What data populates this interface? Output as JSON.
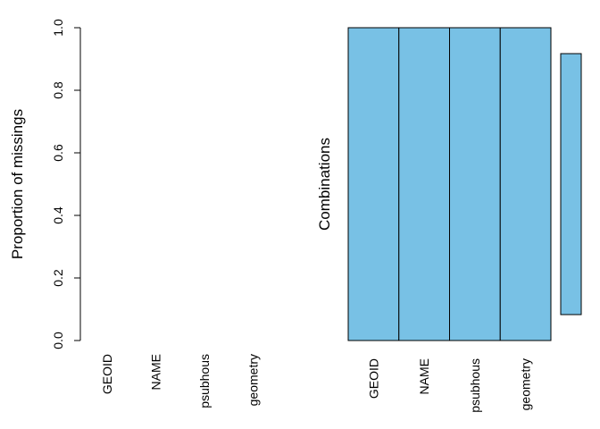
{
  "colors": {
    "fill": "#78C1E5",
    "stroke": "#000000",
    "background": "#ffffff"
  },
  "chart_data": [
    {
      "type": "bar",
      "title": "",
      "xlabel": "",
      "ylabel": "Proportion of missings",
      "categories": [
        "GEOID",
        "NAME",
        "psubhous",
        "geometry"
      ],
      "values": [
        0,
        0,
        0,
        0
      ],
      "ylim": [
        0,
        1
      ],
      "yticks": [
        "0.0",
        "0.2",
        "0.4",
        "0.6",
        "0.8",
        "1.0"
      ],
      "grid": false,
      "legend": "none"
    },
    {
      "type": "heatmap",
      "title": "",
      "ylabel": "Combinations",
      "categories": [
        "GEOID",
        "NAME",
        "psubhous",
        "geometry"
      ],
      "combinations": [
        {
          "pattern": [
            0,
            0,
            0,
            0
          ],
          "frequency": 1.0
        }
      ],
      "grid": false,
      "legend": "none"
    }
  ]
}
